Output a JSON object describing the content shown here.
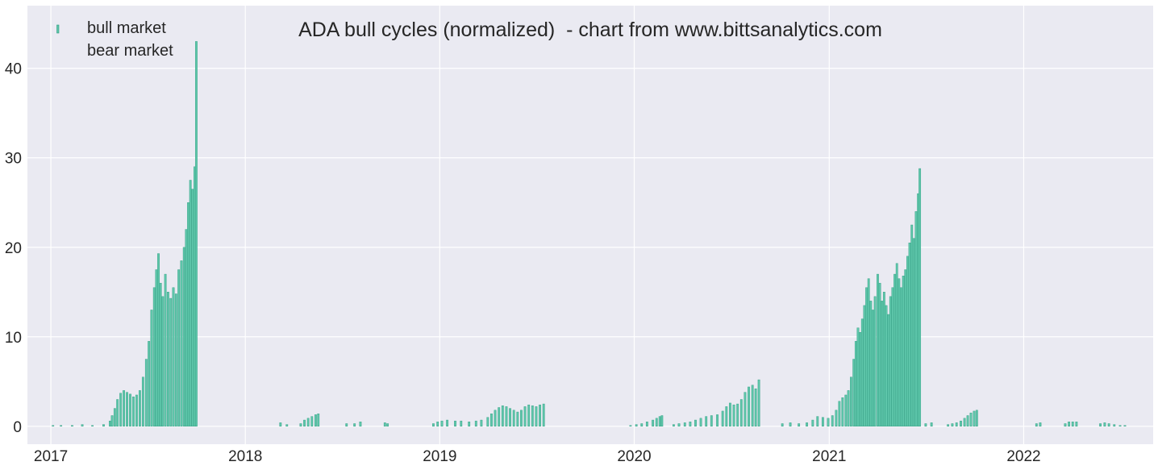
{
  "chart_data": {
    "type": "bar",
    "title": "ADA bull cycles (normalized)  - chart from www.bittsanalytics.com",
    "xlabel": "",
    "ylabel": "",
    "x_range": [
      "2016-11-18",
      "2022-09-01"
    ],
    "ylim": [
      -2,
      47
    ],
    "y_ticks": [
      0,
      10,
      20,
      30,
      40
    ],
    "x_ticks": [
      {
        "label": "2017",
        "date": "2017-01-01"
      },
      {
        "label": "2018",
        "date": "2018-01-01"
      },
      {
        "label": "2019",
        "date": "2019-01-01"
      },
      {
        "label": "2020",
        "date": "2020-01-01"
      },
      {
        "label": "2021",
        "date": "2021-01-01"
      },
      {
        "label": "2022",
        "date": "2022-01-01"
      }
    ],
    "grid": true,
    "legend_position": "top-left",
    "background": "#eaeaf2",
    "grid_color": "#ffffff",
    "bull_color": "#5ec6aa",
    "bull_edge_color": "#2e9d80",
    "series": [
      {
        "name": "bull market",
        "points": [
          [
            "2017-01-05",
            0.1
          ],
          [
            "2017-01-20",
            0.1
          ],
          [
            "2017-02-10",
            0.1
          ],
          [
            "2017-03-01",
            0.2
          ],
          [
            "2017-03-20",
            0.1
          ],
          [
            "2017-04-10",
            0.2
          ],
          [
            "2017-04-22",
            0.6
          ],
          [
            "2017-04-26",
            1.2
          ],
          [
            "2017-05-01",
            2.0
          ],
          [
            "2017-05-06",
            3.0
          ],
          [
            "2017-05-12",
            3.7
          ],
          [
            "2017-05-18",
            4.0
          ],
          [
            "2017-05-24",
            3.8
          ],
          [
            "2017-05-30",
            3.6
          ],
          [
            "2017-06-05",
            3.3
          ],
          [
            "2017-06-11",
            3.5
          ],
          [
            "2017-06-17",
            4.0
          ],
          [
            "2017-06-23",
            5.5
          ],
          [
            "2017-06-29",
            7.5
          ],
          [
            "2017-07-04",
            9.5
          ],
          [
            "2017-07-09",
            13.0
          ],
          [
            "2017-07-14",
            15.5
          ],
          [
            "2017-07-18",
            17.5
          ],
          [
            "2017-07-22",
            19.3
          ],
          [
            "2017-07-26",
            16.0
          ],
          [
            "2017-07-30",
            14.5
          ],
          [
            "2017-08-04",
            17.0
          ],
          [
            "2017-08-09",
            15.0
          ],
          [
            "2017-08-14",
            14.3
          ],
          [
            "2017-08-19",
            15.5
          ],
          [
            "2017-08-24",
            14.8
          ],
          [
            "2017-08-29",
            17.5
          ],
          [
            "2017-09-03",
            18.5
          ],
          [
            "2017-09-08",
            20.0
          ],
          [
            "2017-09-12",
            22.0
          ],
          [
            "2017-09-16",
            25.0
          ],
          [
            "2017-09-20",
            27.5
          ],
          [
            "2017-09-24",
            26.5
          ],
          [
            "2017-09-28",
            29.0
          ],
          [
            "2017-10-01",
            43.0
          ],
          [
            "2018-03-08",
            0.4
          ],
          [
            "2018-03-20",
            0.2
          ],
          [
            "2018-04-15",
            0.3
          ],
          [
            "2018-04-22",
            0.7
          ],
          [
            "2018-04-29",
            0.9
          ],
          [
            "2018-05-06",
            1.1
          ],
          [
            "2018-05-13",
            1.3
          ],
          [
            "2018-05-18",
            1.4
          ],
          [
            "2018-07-10",
            0.3
          ],
          [
            "2018-07-25",
            0.3
          ],
          [
            "2018-08-05",
            0.5
          ],
          [
            "2018-09-20",
            0.4
          ],
          [
            "2018-09-25",
            0.3
          ],
          [
            "2018-12-20",
            0.3
          ],
          [
            "2018-12-28",
            0.5
          ],
          [
            "2019-01-05",
            0.6
          ],
          [
            "2019-01-15",
            0.7
          ],
          [
            "2019-01-30",
            0.6
          ],
          [
            "2019-02-10",
            0.6
          ],
          [
            "2019-02-25",
            0.5
          ],
          [
            "2019-03-10",
            0.6
          ],
          [
            "2019-03-20",
            0.7
          ],
          [
            "2019-04-01",
            1.0
          ],
          [
            "2019-04-08",
            1.4
          ],
          [
            "2019-04-15",
            1.8
          ],
          [
            "2019-04-22",
            2.1
          ],
          [
            "2019-04-29",
            2.3
          ],
          [
            "2019-05-06",
            2.2
          ],
          [
            "2019-05-13",
            2.0
          ],
          [
            "2019-05-20",
            1.8
          ],
          [
            "2019-05-27",
            1.6
          ],
          [
            "2019-06-03",
            1.8
          ],
          [
            "2019-06-10",
            2.2
          ],
          [
            "2019-06-17",
            2.4
          ],
          [
            "2019-06-24",
            2.3
          ],
          [
            "2019-07-01",
            2.2
          ],
          [
            "2019-07-08",
            2.4
          ],
          [
            "2019-07-15",
            2.5
          ],
          [
            "2019-12-25",
            0.1
          ],
          [
            "2020-01-05",
            0.2
          ],
          [
            "2020-01-15",
            0.3
          ],
          [
            "2020-01-25",
            0.5
          ],
          [
            "2020-02-05",
            0.7
          ],
          [
            "2020-02-12",
            0.9
          ],
          [
            "2020-02-18",
            1.1
          ],
          [
            "2020-02-22",
            1.2
          ],
          [
            "2020-03-15",
            0.2
          ],
          [
            "2020-03-25",
            0.3
          ],
          [
            "2020-04-05",
            0.4
          ],
          [
            "2020-04-15",
            0.5
          ],
          [
            "2020-04-25",
            0.7
          ],
          [
            "2020-05-05",
            0.9
          ],
          [
            "2020-05-15",
            1.1
          ],
          [
            "2020-05-25",
            1.2
          ],
          [
            "2020-06-05",
            1.3
          ],
          [
            "2020-06-15",
            1.7
          ],
          [
            "2020-06-22",
            2.2
          ],
          [
            "2020-06-29",
            2.6
          ],
          [
            "2020-07-06",
            2.4
          ],
          [
            "2020-07-13",
            2.5
          ],
          [
            "2020-07-20",
            3.0
          ],
          [
            "2020-07-27",
            3.8
          ],
          [
            "2020-08-03",
            4.4
          ],
          [
            "2020-08-10",
            4.6
          ],
          [
            "2020-08-16",
            4.2
          ],
          [
            "2020-08-22",
            5.2
          ],
          [
            "2020-10-05",
            0.3
          ],
          [
            "2020-10-20",
            0.4
          ],
          [
            "2020-11-05",
            0.3
          ],
          [
            "2020-11-20",
            0.4
          ],
          [
            "2020-12-01",
            0.7
          ],
          [
            "2020-12-10",
            1.1
          ],
          [
            "2020-12-20",
            1.0
          ],
          [
            "2020-12-30",
            0.9
          ],
          [
            "2021-01-07",
            1.2
          ],
          [
            "2021-01-14",
            1.8
          ],
          [
            "2021-01-20",
            2.8
          ],
          [
            "2021-01-26",
            3.2
          ],
          [
            "2021-02-01",
            3.5
          ],
          [
            "2021-02-06",
            4.0
          ],
          [
            "2021-02-11",
            5.5
          ],
          [
            "2021-02-16",
            7.5
          ],
          [
            "2021-02-20",
            9.5
          ],
          [
            "2021-02-24",
            11.0
          ],
          [
            "2021-02-28",
            10.5
          ],
          [
            "2021-03-04",
            12.0
          ],
          [
            "2021-03-08",
            13.5
          ],
          [
            "2021-03-12",
            15.5
          ],
          [
            "2021-03-16",
            16.5
          ],
          [
            "2021-03-20",
            14.0
          ],
          [
            "2021-03-24",
            13.0
          ],
          [
            "2021-03-28",
            14.5
          ],
          [
            "2021-04-02",
            17.0
          ],
          [
            "2021-04-06",
            16.0
          ],
          [
            "2021-04-10",
            14.0
          ],
          [
            "2021-04-14",
            15.0
          ],
          [
            "2021-04-18",
            13.5
          ],
          [
            "2021-04-22",
            12.5
          ],
          [
            "2021-04-26",
            14.5
          ],
          [
            "2021-04-30",
            15.5
          ],
          [
            "2021-05-04",
            17.0
          ],
          [
            "2021-05-08",
            18.2
          ],
          [
            "2021-05-12",
            16.5
          ],
          [
            "2021-05-16",
            15.5
          ],
          [
            "2021-05-20",
            16.8
          ],
          [
            "2021-05-24",
            17.5
          ],
          [
            "2021-05-28",
            19.0
          ],
          [
            "2021-06-01",
            20.5
          ],
          [
            "2021-06-05",
            22.5
          ],
          [
            "2021-06-09",
            21.0
          ],
          [
            "2021-06-13",
            24.0
          ],
          [
            "2021-06-17",
            26.0
          ],
          [
            "2021-06-20",
            28.8
          ],
          [
            "2021-07-01",
            0.3
          ],
          [
            "2021-07-12",
            0.4
          ],
          [
            "2021-08-12",
            0.2
          ],
          [
            "2021-08-20",
            0.3
          ],
          [
            "2021-08-28",
            0.4
          ],
          [
            "2021-09-05",
            0.6
          ],
          [
            "2021-09-12",
            0.9
          ],
          [
            "2021-09-18",
            1.2
          ],
          [
            "2021-09-24",
            1.5
          ],
          [
            "2021-09-30",
            1.7
          ],
          [
            "2021-10-05",
            1.8
          ],
          [
            "2022-01-25",
            0.3
          ],
          [
            "2022-02-01",
            0.4
          ],
          [
            "2022-03-20",
            0.3
          ],
          [
            "2022-03-27",
            0.5
          ],
          [
            "2022-04-03",
            0.5
          ],
          [
            "2022-04-10",
            0.5
          ],
          [
            "2022-05-25",
            0.3
          ],
          [
            "2022-06-02",
            0.4
          ],
          [
            "2022-06-10",
            0.3
          ],
          [
            "2022-06-20",
            0.2
          ],
          [
            "2022-07-01",
            0.1
          ],
          [
            "2022-07-10",
            0.1
          ]
        ]
      },
      {
        "name": "bear market",
        "points": []
      }
    ]
  }
}
